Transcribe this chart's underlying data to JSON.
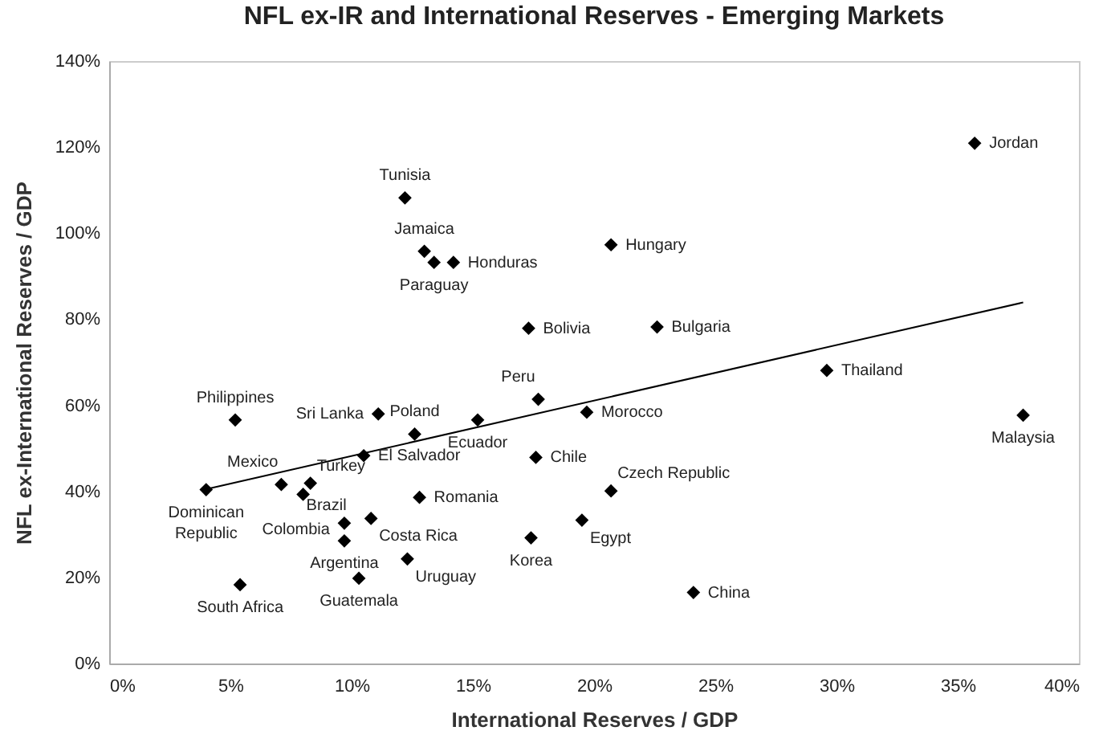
{
  "chart_data": {
    "type": "scatter",
    "title": "NFL ex-IR and International Reserves - Emerging Markets",
    "xlabel": "International Reserves / GDP",
    "ylabel": "NFL ex-International Reserves / GDP",
    "xlim": [
      0,
      40
    ],
    "ylim": [
      0,
      140
    ],
    "xticks": [
      {
        "value": 0,
        "label": "0%"
      },
      {
        "value": 5,
        "label": "5%"
      },
      {
        "value": 10,
        "label": "10%"
      },
      {
        "value": 15,
        "label": "15%"
      },
      {
        "value": 20,
        "label": "20%"
      },
      {
        "value": 25,
        "label": "25%"
      },
      {
        "value": 30,
        "label": "30%"
      },
      {
        "value": 35,
        "label": "35%"
      },
      {
        "value": 40,
        "label": "40%"
      }
    ],
    "yticks": [
      {
        "value": 0,
        "label": "0%"
      },
      {
        "value": 20,
        "label": "20%"
      },
      {
        "value": 40,
        "label": "40%"
      },
      {
        "value": 60,
        "label": "60%"
      },
      {
        "value": 80,
        "label": "80%"
      },
      {
        "value": 100,
        "label": "100%"
      },
      {
        "value": 120,
        "label": "120%"
      },
      {
        "value": 140,
        "label": "140%"
      }
    ],
    "grid": false,
    "marker": "diamond",
    "series": [
      {
        "color": "#000000",
        "x": [
          35.7,
          12.2,
          13.0,
          13.4,
          14.2,
          20.7,
          17.3,
          22.6,
          17.7,
          5.2,
          11.1,
          12.6,
          15.2,
          19.7,
          29.6,
          37.7,
          10.5,
          17.6,
          7.1,
          8.3,
          8.0,
          4.0,
          12.8,
          20.7,
          9.7,
          10.8,
          19.5,
          9.7,
          17.4,
          12.3,
          10.3,
          5.4,
          24.1
        ],
        "values": [
          120.9,
          108.2,
          95.8,
          93.2,
          93.2,
          97.3,
          77.9,
          78.2,
          61.4,
          56.6,
          58.0,
          53.3,
          56.6,
          58.4,
          68.1,
          57.7,
          48.3,
          47.9,
          41.6,
          41.9,
          39.3,
          40.4,
          38.6,
          40.1,
          32.6,
          33.7,
          33.3,
          28.5,
          29.2,
          24.3,
          19.8,
          18.3,
          16.5
        ]
      },
      {
        "type": "line",
        "color": "#000000",
        "marker": "none",
        "x": [
          4.0,
          37.7
        ],
        "values": [
          40.5,
          83.9
        ]
      }
    ],
    "annotations": [
      {
        "text": "Jordan",
        "x": 35.7,
        "y": 120.9
      },
      {
        "text": "Tunisia",
        "x": 12.2,
        "y": 108.2
      },
      {
        "text": "Jamaica",
        "x": 13.0,
        "y": 95.8
      },
      {
        "text": "Paraguay",
        "x": 13.4,
        "y": 93.2
      },
      {
        "text": "Honduras",
        "x": 14.2,
        "y": 93.2
      },
      {
        "text": "Hungary",
        "x": 20.7,
        "y": 97.3
      },
      {
        "text": "Bolivia",
        "x": 17.3,
        "y": 77.9
      },
      {
        "text": "Bulgaria",
        "x": 22.6,
        "y": 78.2
      },
      {
        "text": "Peru",
        "x": 17.7,
        "y": 61.4
      },
      {
        "text": "Philippines",
        "x": 5.2,
        "y": 56.6
      },
      {
        "text": "Sri Lanka",
        "x": 11.1,
        "y": 58.0
      },
      {
        "text": "Poland",
        "x": 12.6,
        "y": 53.3
      },
      {
        "text": "Ecuador",
        "x": 15.2,
        "y": 56.6
      },
      {
        "text": "Morocco",
        "x": 19.7,
        "y": 58.4
      },
      {
        "text": "Thailand",
        "x": 29.6,
        "y": 68.1
      },
      {
        "text": "Malaysia",
        "x": 37.7,
        "y": 57.7
      },
      {
        "text": "El Salvador",
        "x": 10.5,
        "y": 48.3
      },
      {
        "text": "Chile",
        "x": 17.6,
        "y": 47.9
      },
      {
        "text": "Mexico",
        "x": 7.1,
        "y": 41.6
      },
      {
        "text": "Turkey",
        "x": 8.3,
        "y": 41.9
      },
      {
        "text": "Brazil",
        "x": 8.0,
        "y": 39.3
      },
      {
        "text": "Dominican\nRepublic",
        "x": 4.0,
        "y": 40.4
      },
      {
        "text": "Romania",
        "x": 12.8,
        "y": 38.6
      },
      {
        "text": "Czech Republic",
        "x": 20.7,
        "y": 40.1
      },
      {
        "text": "Colombia",
        "x": 9.7,
        "y": 32.6
      },
      {
        "text": "Costa Rica",
        "x": 10.8,
        "y": 33.7
      },
      {
        "text": "Egypt",
        "x": 19.5,
        "y": 33.3
      },
      {
        "text": "Argentina",
        "x": 9.7,
        "y": 28.5
      },
      {
        "text": "Korea",
        "x": 17.4,
        "y": 29.2
      },
      {
        "text": "Uruguay",
        "x": 12.3,
        "y": 24.3
      },
      {
        "text": "Guatemala",
        "x": 10.3,
        "y": 19.8
      },
      {
        "text": "South Africa",
        "x": 5.4,
        "y": 18.3
      },
      {
        "text": "China",
        "x": 24.1,
        "y": 16.5
      }
    ]
  }
}
